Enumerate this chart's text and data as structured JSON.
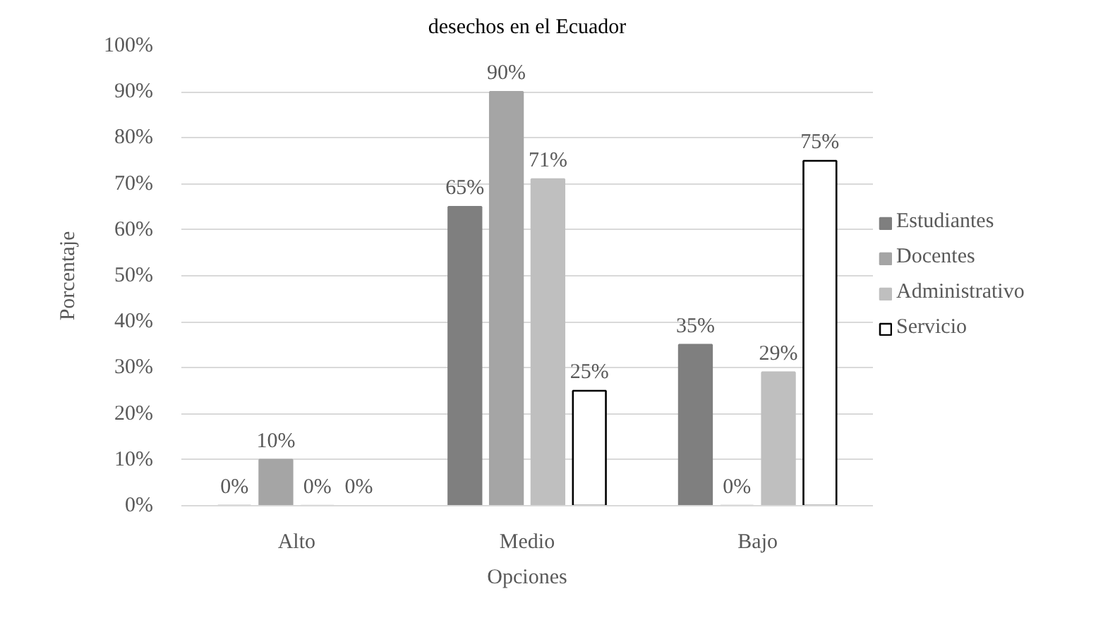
{
  "chart_data": {
    "type": "bar",
    "title": "desechos en el Ecuador",
    "xlabel": "Opciones",
    "ylabel": "Porcentaje",
    "categories": [
      "Alto",
      "Medio",
      "Bajo"
    ],
    "series": [
      {
        "name": "Estudiantes",
        "color": "#7f7f7f",
        "values": [
          0,
          65,
          35
        ],
        "value_labels": [
          "0%",
          "65%",
          "35%"
        ]
      },
      {
        "name": "Docentes",
        "color": "#a5a5a5",
        "values": [
          10,
          90,
          0
        ],
        "value_labels": [
          "10%",
          "90%",
          "0%"
        ]
      },
      {
        "name": "Administrativo",
        "color": "#bfbfbf",
        "values": [
          0,
          71,
          29
        ],
        "value_labels": [
          "0%",
          "71%",
          "29%"
        ]
      },
      {
        "name": "Servicio",
        "color": "#ffffff",
        "values": [
          0,
          25,
          75
        ],
        "value_labels": [
          "0%",
          "25%",
          "75%"
        ]
      }
    ],
    "ylim": [
      0,
      100
    ],
    "yticks": [
      {
        "value": 0,
        "label": "0%"
      },
      {
        "value": 10,
        "label": "10%"
      },
      {
        "value": 20,
        "label": "20%"
      },
      {
        "value": 30,
        "label": "30%"
      },
      {
        "value": 40,
        "label": "40%"
      },
      {
        "value": 50,
        "label": "50%"
      },
      {
        "value": 60,
        "label": "60%"
      },
      {
        "value": 70,
        "label": "70%"
      },
      {
        "value": 80,
        "label": "80%"
      },
      {
        "value": 90,
        "label": "90%"
      },
      {
        "value": 100,
        "label": "100%"
      }
    ],
    "grid": "y",
    "legend": "right"
  }
}
